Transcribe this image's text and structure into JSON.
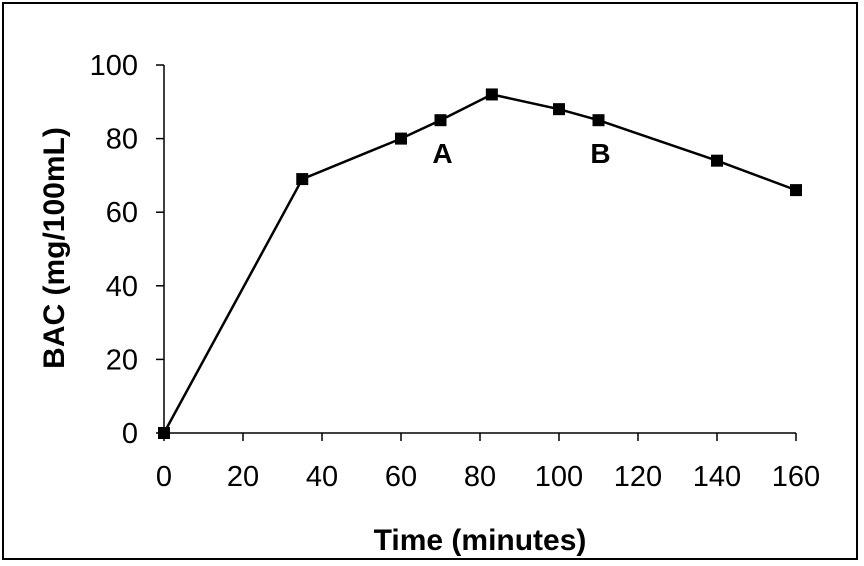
{
  "chart_data": {
    "type": "line",
    "title": "",
    "xlabel": "Time (minutes)",
    "ylabel": "BAC (mg/100mL)",
    "xlim": [
      0,
      160
    ],
    "ylim": [
      0,
      100
    ],
    "xticks": [
      0,
      20,
      40,
      60,
      80,
      100,
      120,
      140,
      160
    ],
    "yticks": [
      0,
      20,
      40,
      60,
      80,
      100
    ],
    "grid": false,
    "legend": "none",
    "series": [
      {
        "color": "#000000",
        "marker": "square",
        "x": [
          0,
          35,
          60,
          70,
          83,
          100,
          110,
          140,
          160
        ],
        "y": [
          0,
          69,
          80,
          85,
          92,
          88,
          85,
          74,
          66
        ]
      }
    ],
    "annotations": [
      {
        "text": "A",
        "x": 70,
        "y": 85
      },
      {
        "text": "B",
        "x": 110,
        "y": 85
      }
    ]
  }
}
